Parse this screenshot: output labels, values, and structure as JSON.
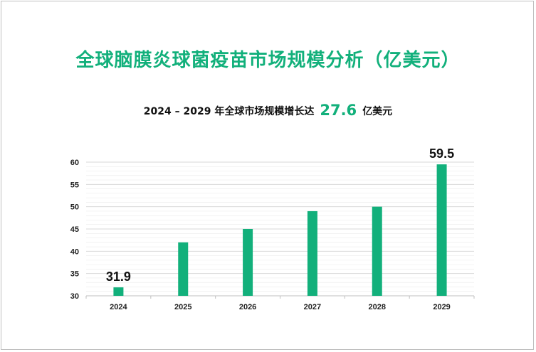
{
  "title": "全球脑膜炎球菌疫苗市场规模分析（亿美元）",
  "subtitle": {
    "prefix": "2024 – 2029 年全球市场规模增长达",
    "value": "27.6",
    "suffix": "亿美元"
  },
  "colors": {
    "accent": "#12b07b",
    "bar": "#12b07b",
    "grid": "#d9d9d9"
  },
  "chart_data": {
    "type": "bar",
    "categories": [
      "2024",
      "2025",
      "2026",
      "2027",
      "2028",
      "2029"
    ],
    "values": [
      31.9,
      42,
      45,
      49,
      50,
      59.5
    ],
    "data_labels": [
      "31.9",
      null,
      null,
      null,
      null,
      "59.5"
    ],
    "ylim": [
      30,
      60
    ],
    "y_ticks": [
      30,
      35,
      40,
      45,
      50,
      55,
      60
    ],
    "grid": true
  }
}
